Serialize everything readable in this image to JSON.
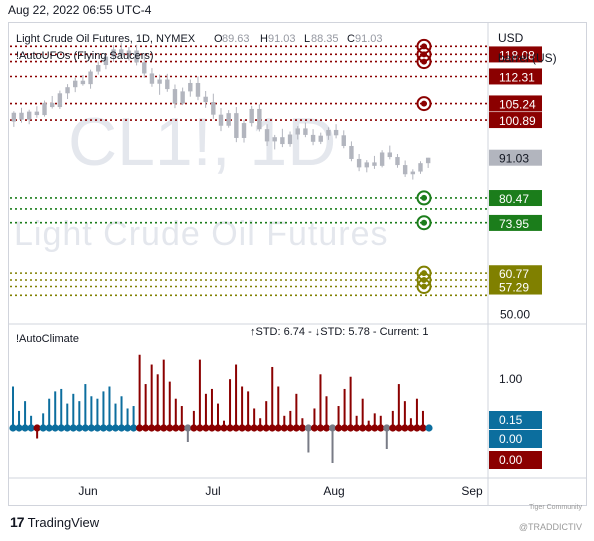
{
  "timestamp": "Aug 22, 2022 06:55 UTC-4",
  "symbol_title": "Light Crude Oil Futures, 1D, NYMEX",
  "ohlc": {
    "o_label": "O",
    "o": "89.63",
    "h_label": "H",
    "h": "91.03",
    "l_label": "L",
    "l": "88.35",
    "c_label": "C",
    "c": "91.03"
  },
  "indicator_upper": "!AutoUFOs (Flying Saucers)",
  "indicator_lower": "!AutoClimate",
  "lower_stats": "↑STD: 6.74 - ↓STD: 5.78 - Current: 1",
  "watermark_symbol": "CL1!, 1D",
  "watermark_name": "Light Crude Oil Futures",
  "price_axis_unit_1": "USD",
  "price_axis_unit_2": "barrel (US)",
  "brand": "TradingView",
  "footer_right_1": "Tiger Community",
  "footer_right_2": "@TRADDICTIV",
  "colors": {
    "resistance": "#8b0000",
    "support_green": "#1b7d1b",
    "support_olive": "#808000",
    "current_price_bg": "#b2b5be",
    "candle": "#b2b5be",
    "climate_blue": "#0c6e9e",
    "climate_red": "#8b0000",
    "climate_grey": "#787b86"
  },
  "chart_data": [
    {
      "type": "candlestick",
      "title": "Light Crude Oil Futures, 1D, NYMEX",
      "x_tick_labels": [
        "Jun",
        "Jul",
        "Aug",
        "Sep"
      ],
      "y_ticks": [
        50.0
      ],
      "ylim": [
        48,
        125
      ],
      "current_price": "91.03",
      "price_labels": [
        {
          "value": "118.08",
          "color": "#8b0000",
          "partial": true
        },
        {
          "value": "112.31",
          "color": "#8b0000"
        },
        {
          "value": "105.24",
          "color": "#8b0000"
        },
        {
          "value": "100.89",
          "color": "#8b0000"
        },
        {
          "value": "91.03",
          "color": "#b2b5be"
        },
        {
          "value": "80.47",
          "color": "#1b7d1b"
        },
        {
          "value": "73.95",
          "color": "#1b7d1b"
        },
        {
          "value": "60.77",
          "color": "#808000",
          "partial": true
        },
        {
          "value": "57.29",
          "color": "#808000"
        }
      ],
      "resistance_levels": [
        120.2,
        118.1,
        116.2,
        112.3,
        105.2,
        100.9
      ],
      "support_green_levels": [
        80.5,
        77.6,
        74.0
      ],
      "support_olive_levels": [
        60.8,
        59.0,
        57.3,
        55.0
      ],
      "series": [
        {
          "ohlc": [
            [
              100.5,
              103.2,
              99.1,
              102.8
            ],
            [
              102.8,
              104.1,
              100.2,
              101.0
            ],
            [
              101.0,
              103.6,
              99.8,
              103.1
            ],
            [
              103.1,
              104.5,
              101.5,
              102.2
            ],
            [
              102.2,
              106.0,
              101.8,
              105.4
            ],
            [
              105.4,
              107.2,
              103.9,
              104.3
            ],
            [
              104.3,
              108.6,
              103.8,
              107.9
            ],
            [
              107.9,
              110.3,
              106.4,
              109.5
            ],
            [
              109.5,
              112.0,
              108.2,
              111.2
            ],
            [
              111.2,
              112.7,
              109.9,
              110.3
            ],
            [
              110.3,
              114.1,
              109.1,
              113.6
            ],
            [
              113.6,
              116.2,
              112.8,
              115.3
            ],
            [
              115.3,
              118.4,
              114.2,
              117.5
            ],
            [
              117.5,
              120.5,
              116.1,
              119.4
            ],
            [
              119.4,
              121.2,
              117.3,
              118.0
            ],
            [
              118.0,
              120.0,
              116.5,
              119.1
            ],
            [
              119.1,
              120.6,
              115.2,
              116.0
            ],
            [
              116.0,
              118.2,
              112.0,
              113.1
            ],
            [
              113.1,
              114.5,
              109.6,
              110.4
            ],
            [
              110.4,
              112.8,
              107.5,
              111.5
            ],
            [
              111.5,
              113.0,
              108.3,
              109.0
            ],
            [
              109.0,
              110.2,
              104.0,
              105.2
            ],
            [
              105.2,
              109.4,
              104.8,
              108.4
            ],
            [
              108.4,
              111.5,
              107.0,
              110.6
            ],
            [
              110.6,
              112.3,
              106.1,
              107.0
            ],
            [
              107.0,
              108.5,
              104.1,
              105.6
            ],
            [
              105.6,
              107.8,
              101.2,
              102.3
            ],
            [
              102.3,
              104.0,
              98.0,
              99.4
            ],
            [
              99.4,
              103.5,
              98.9,
              102.7
            ],
            [
              102.7,
              104.3,
              95.1,
              96.2
            ],
            [
              96.2,
              101.0,
              95.0,
              100.1
            ],
            [
              100.1,
              104.6,
              99.2,
              103.8
            ],
            [
              103.8,
              105.0,
              97.9,
              98.5
            ],
            [
              98.5,
              99.8,
              94.1,
              95.3
            ],
            [
              95.3,
              97.0,
              93.2,
              96.4
            ],
            [
              96.4,
              98.6,
              93.8,
              94.6
            ],
            [
              94.6,
              97.9,
              93.9,
              97.1
            ],
            [
              97.1,
              99.3,
              95.8,
              98.7
            ],
            [
              98.7,
              100.2,
              96.4,
              97.0
            ],
            [
              97.0,
              98.5,
              94.3,
              95.2
            ],
            [
              95.2,
              97.6,
              94.6,
              96.8
            ],
            [
              96.8,
              99.0,
              95.7,
              98.3
            ],
            [
              98.3,
              99.8,
              96.1,
              96.9
            ],
            [
              96.9,
              98.2,
              93.5,
              94.1
            ],
            [
              94.1,
              95.3,
              90.1,
              90.7
            ],
            [
              90.7,
              92.0,
              87.5,
              88.5
            ],
            [
              88.5,
              90.4,
              87.2,
              89.8
            ],
            [
              89.8,
              91.5,
              88.1,
              88.9
            ],
            [
              88.9,
              93.0,
              88.5,
              92.4
            ],
            [
              92.4,
              94.2,
              90.6,
              91.2
            ],
            [
              91.2,
              92.0,
              88.4,
              89.1
            ],
            [
              89.1,
              90.3,
              86.0,
              86.7
            ],
            [
              86.7,
              88.0,
              85.3,
              87.4
            ],
            [
              87.4,
              90.1,
              86.8,
              89.6
            ],
            [
              89.6,
              91.0,
              88.35,
              91.03
            ]
          ]
        }
      ]
    },
    {
      "type": "bar",
      "title": "!AutoClimate",
      "x_tick_labels": [
        "Jun",
        "Jul",
        "Aug",
        "Sep"
      ],
      "y_labels": [
        {
          "value": "1.00",
          "bg": ""
        },
        {
          "value": "0.15",
          "bg": "#0c6e9e"
        },
        {
          "value": "0.00",
          "bg": "#0c6e9e"
        },
        {
          "value": "0.00",
          "bg": "#8b0000"
        }
      ],
      "ylim": [
        -0.6,
        1.7
      ],
      "values": [
        0.85,
        0.35,
        0.55,
        0.25,
        -0.15,
        0.3,
        0.6,
        0.75,
        0.8,
        0.5,
        0.7,
        0.55,
        0.9,
        0.65,
        0.6,
        0.75,
        0.85,
        0.5,
        0.65,
        0.4,
        0.45,
        1.5,
        0.9,
        1.3,
        1.1,
        1.4,
        0.95,
        0.6,
        0.45,
        -0.2,
        0.35,
        1.4,
        0.7,
        0.8,
        0.5,
        0.15,
        1.0,
        1.3,
        0.85,
        0.75,
        0.4,
        0.2,
        0.55,
        1.25,
        0.85,
        0.25,
        0.35,
        0.7,
        0.2,
        -0.35,
        0.4,
        1.1,
        0.65,
        -0.5,
        0.45,
        0.8,
        1.05,
        0.25,
        0.6,
        0.15,
        0.3,
        0.25,
        -0.3,
        0.35,
        0.9,
        0.55,
        0.2,
        0.6,
        0.35,
        0.05
      ],
      "colors": [
        "b",
        "b",
        "b",
        "b",
        "r",
        "b",
        "b",
        "b",
        "b",
        "b",
        "b",
        "b",
        "b",
        "b",
        "b",
        "b",
        "b",
        "b",
        "b",
        "b",
        "b",
        "r",
        "r",
        "r",
        "r",
        "r",
        "r",
        "r",
        "r",
        "g",
        "r",
        "r",
        "r",
        "r",
        "r",
        "r",
        "r",
        "r",
        "r",
        "r",
        "r",
        "r",
        "r",
        "r",
        "r",
        "r",
        "r",
        "r",
        "r",
        "g",
        "r",
        "r",
        "r",
        "g",
        "r",
        "r",
        "r",
        "r",
        "r",
        "r",
        "r",
        "r",
        "g",
        "r",
        "r",
        "r",
        "r",
        "r",
        "r",
        "b"
      ]
    }
  ]
}
